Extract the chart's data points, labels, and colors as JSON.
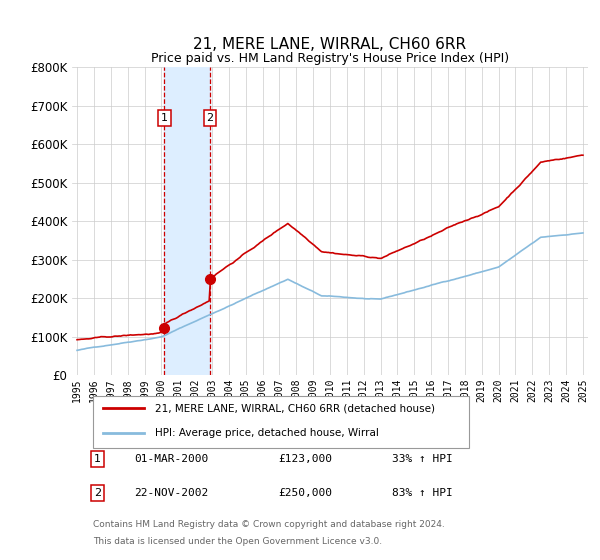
{
  "title": "21, MERE LANE, WIRRAL, CH60 6RR",
  "subtitle": "Price paid vs. HM Land Registry's House Price Index (HPI)",
  "ylim": [
    0,
    800000
  ],
  "yticks": [
    0,
    100000,
    200000,
    300000,
    400000,
    500000,
    600000,
    700000,
    800000
  ],
  "ytick_labels": [
    "£0",
    "£100K",
    "£200K",
    "£300K",
    "£400K",
    "£500K",
    "£600K",
    "£700K",
    "£800K"
  ],
  "sale1_date": 2000.17,
  "sale1_price": 123000,
  "sale1_label": "01-MAR-2000",
  "sale1_amount": "£123,000",
  "sale1_pct": "33% ↑ HPI",
  "sale2_date": 2002.89,
  "sale2_price": 250000,
  "sale2_label": "22-NOV-2002",
  "sale2_amount": "£250,000",
  "sale2_pct": "83% ↑ HPI",
  "legend_line1": "21, MERE LANE, WIRRAL, CH60 6RR (detached house)",
  "legend_line2": "HPI: Average price, detached house, Wirral",
  "footer1": "Contains HM Land Registry data © Crown copyright and database right 2024.",
  "footer2": "This data is licensed under the Open Government Licence v3.0.",
  "line_color_red": "#cc0000",
  "line_color_blue": "#88bbdd",
  "shade_color": "#ddeeff",
  "grid_color": "#cccccc",
  "bg_color": "#ffffff"
}
